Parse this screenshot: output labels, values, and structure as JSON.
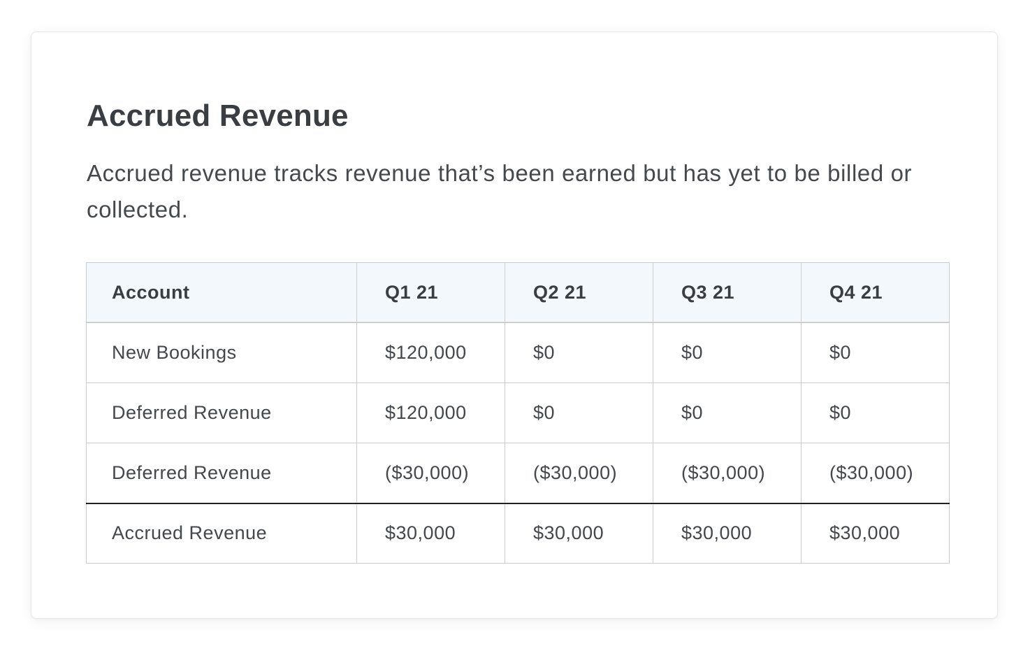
{
  "card": {
    "title": "Accrued Revenue",
    "description": "Accrued revenue tracks revenue that’s been earned but has yet to be billed or collected."
  },
  "table": {
    "headers": [
      "Account",
      "Q1 21",
      "Q2 21",
      "Q3 21",
      "Q4 21"
    ],
    "rows": [
      {
        "account": "New Bookings",
        "values": [
          "$120,000",
          "$0",
          "$0",
          "$0"
        ]
      },
      {
        "account": "Deferred Revenue",
        "values": [
          "$120,000",
          "$0",
          "$0",
          "$0"
        ]
      },
      {
        "account": "Deferred Revenue",
        "values": [
          "($30,000)",
          "($30,000)",
          "($30,000)",
          "($30,000)"
        ]
      },
      {
        "account": "Accrued Revenue",
        "values": [
          "$30,000",
          "$30,000",
          "$30,000",
          "$30,000"
        ]
      }
    ]
  },
  "colors": {
    "header_background": "#f3f8fc",
    "border": "#c9cdd1",
    "total_rule": "#222222",
    "text": "#3f4448"
  }
}
